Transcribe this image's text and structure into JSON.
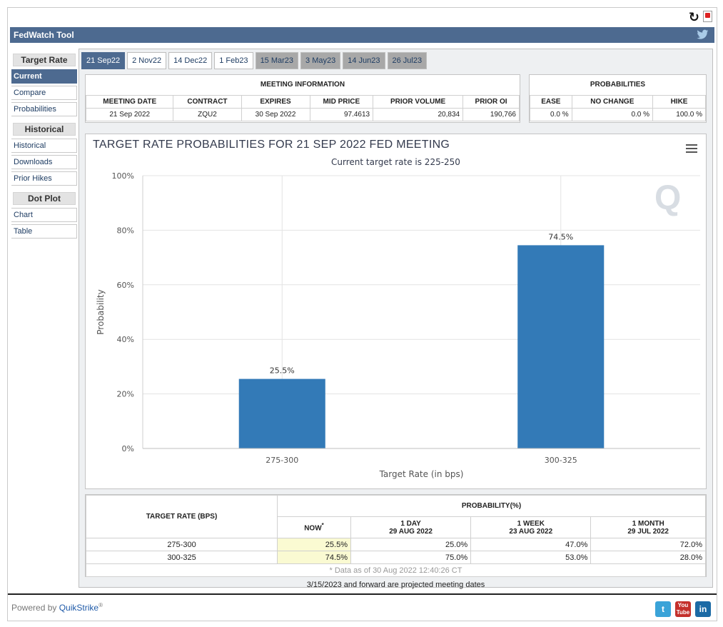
{
  "app": {
    "title": "FedWatch Tool"
  },
  "sidebar": {
    "groups": [
      {
        "heading": "Target Rate",
        "items": [
          "Current",
          "Compare",
          "Probabilities"
        ]
      },
      {
        "heading": "Historical",
        "items": [
          "Historical",
          "Downloads",
          "Prior Hikes"
        ]
      },
      {
        "heading": "Dot Plot",
        "items": [
          "Chart",
          "Table"
        ]
      }
    ],
    "active_item": "Current"
  },
  "tabs": [
    {
      "label": "21 Sep22",
      "state": "active"
    },
    {
      "label": "2 Nov22",
      "state": "normal"
    },
    {
      "label": "14 Dec22",
      "state": "normal"
    },
    {
      "label": "1 Feb23",
      "state": "normal"
    },
    {
      "label": "15 Mar23",
      "state": "projected"
    },
    {
      "label": "3 May23",
      "state": "projected"
    },
    {
      "label": "14 Jun23",
      "state": "projected"
    },
    {
      "label": "26 Jul23",
      "state": "projected"
    }
  ],
  "meeting_info": {
    "heading": "MEETING INFORMATION",
    "columns": [
      "MEETING DATE",
      "CONTRACT",
      "EXPIRES",
      "MID PRICE",
      "PRIOR VOLUME",
      "PRIOR OI"
    ],
    "row": [
      "21 Sep 2022",
      "ZQU2",
      "30 Sep 2022",
      "97.4613",
      "20,834",
      "190,766"
    ]
  },
  "probabilities": {
    "heading": "PROBABILITIES",
    "columns": [
      "EASE",
      "NO CHANGE",
      "HIKE"
    ],
    "row": [
      "0.0 %",
      "0.0 %",
      "100.0 %"
    ]
  },
  "chart_data": {
    "type": "bar",
    "title": "TARGET RATE PROBABILITIES FOR 21 SEP 2022 FED MEETING",
    "subtitle": "Current target rate is 225-250",
    "xlabel": "Target Rate (in bps)",
    "ylabel": "Probability",
    "categories": [
      "275-300",
      "300-325"
    ],
    "values": [
      25.5,
      74.5
    ],
    "data_labels": [
      "25.5%",
      "74.5%"
    ],
    "ylim": [
      0,
      100
    ],
    "yticks": [
      0,
      20,
      40,
      60,
      80,
      100
    ],
    "ytick_labels": [
      "0%",
      "20%",
      "40%",
      "60%",
      "80%",
      "100%"
    ],
    "bar_color": "#337ab7",
    "grid": true
  },
  "prob_table": {
    "col_rate": "TARGET RATE (BPS)",
    "group_heading": "PROBABILITY(%)",
    "now": "NOW",
    "now_mark": "*",
    "periods": [
      {
        "label": "1 DAY",
        "date": "29 AUG 2022"
      },
      {
        "label": "1 WEEK",
        "date": "23 AUG 2022"
      },
      {
        "label": "1 MONTH",
        "date": "29 JUL 2022"
      }
    ],
    "rows": [
      {
        "rate": "275-300",
        "now": "25.5%",
        "d1": "25.0%",
        "w1": "47.0%",
        "m1": "72.0%"
      },
      {
        "rate": "300-325",
        "now": "74.5%",
        "d1": "75.0%",
        "w1": "53.0%",
        "m1": "28.0%"
      }
    ],
    "footnote": "* Data as of 30 Aug 2022 12:40:26 CT"
  },
  "projected_note": "3/15/2023 and forward are projected meeting dates",
  "footer": {
    "powered_by": "Powered by",
    "brand": "QuikStrike",
    "reg": "®"
  },
  "social": [
    {
      "name": "twitter",
      "glyph": "t",
      "color": "#3aa3d8"
    },
    {
      "name": "youtube",
      "glyph": "You Tube",
      "color": "#c4302b"
    },
    {
      "name": "linkedin",
      "glyph": "in",
      "color": "#1b6aa5"
    }
  ]
}
